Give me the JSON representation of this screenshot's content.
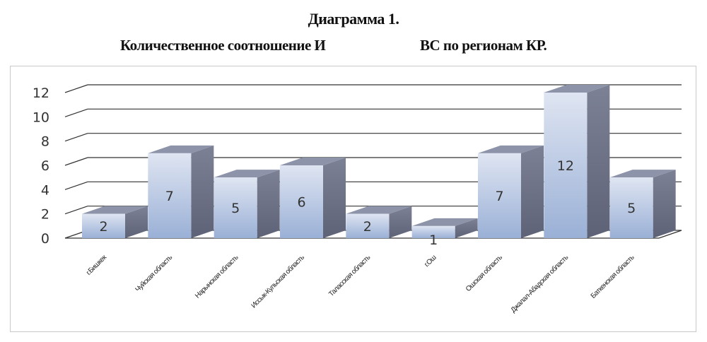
{
  "chart_data": {
    "type": "bar",
    "title": "Диаграмма 1.",
    "subtitle_left": "Количественное соотношение И",
    "subtitle_right": "ВС по регионам КР.",
    "categories": [
      "г.Бишкек",
      "Чуйская область",
      "Нарынская область",
      "Иссык-Кульская область",
      "Таласская область",
      "г.Ош",
      "Ошская область",
      "Джалал-Абадская область",
      "Баткенская область"
    ],
    "values": [
      2,
      7,
      5,
      6,
      2,
      1,
      7,
      12,
      5
    ],
    "data_labels": [
      "2",
      "7",
      "5",
      "6",
      "2",
      "1",
      "7",
      "12",
      "5"
    ],
    "yticks": [
      "0",
      "2",
      "4",
      "6",
      "8",
      "10",
      "12"
    ],
    "ylim": [
      0,
      12
    ],
    "grid": true,
    "legend": "none",
    "style": "3d-column",
    "colors": {
      "bar_top": "#dfe5f2",
      "bar_bottom": "#9ab0d6",
      "bar_side": "#6f7488",
      "bar_cap": "#8d93a8",
      "grid": "#333333"
    }
  }
}
